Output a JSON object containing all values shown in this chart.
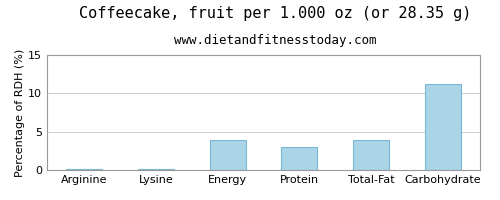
{
  "title": "Coffeecake, fruit per 1.000 oz (or 28.35 g)",
  "subtitle": "www.dietandfitnesstoday.com",
  "categories": [
    "Arginine",
    "Lysine",
    "Energy",
    "Protein",
    "Total-Fat",
    "Carbohydrate"
  ],
  "values": [
    0.1,
    0.1,
    3.9,
    3.0,
    3.9,
    11.2
  ],
  "bar_color": "#aad4e8",
  "bar_edge_color": "#7ab8d4",
  "ylabel": "Percentage of RDH (%)",
  "ylim": [
    0,
    15
  ],
  "yticks": [
    0,
    5,
    10,
    15
  ],
  "background_color": "#ffffff",
  "plot_bg_color": "#ffffff",
  "grid_color": "#cccccc",
  "title_fontsize": 11,
  "subtitle_fontsize": 9,
  "ylabel_fontsize": 8,
  "tick_fontsize": 8
}
